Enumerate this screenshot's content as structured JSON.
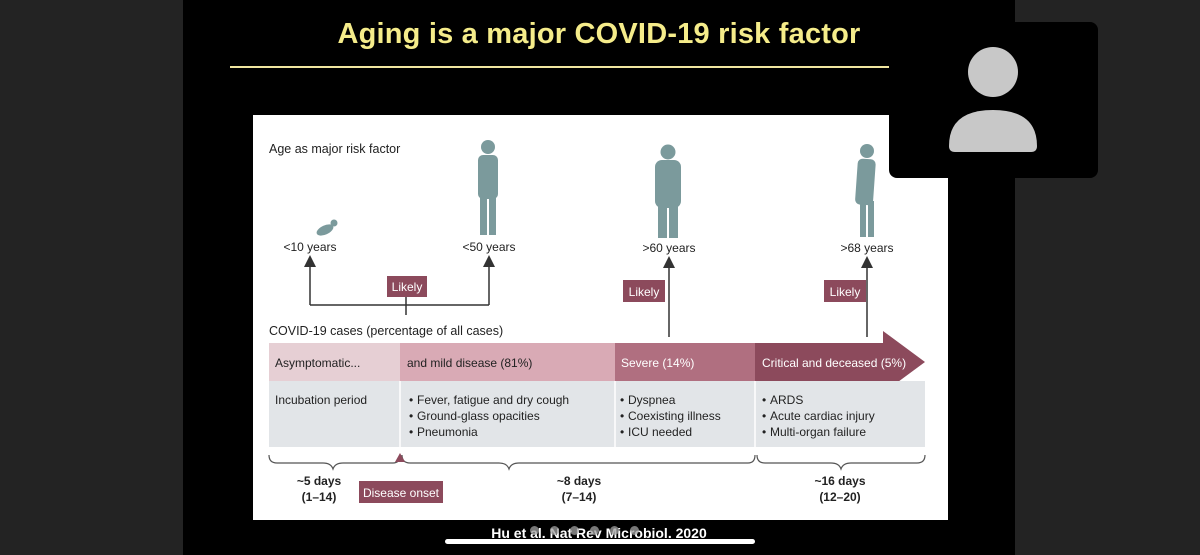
{
  "slide": {
    "title": "Aging is a major COVID-19 risk factor",
    "citation": "Hu et al. Nat Rev Microbiol. 2020"
  },
  "figure": {
    "heading": "Age as major risk factor",
    "ages": [
      {
        "label": "<10 years"
      },
      {
        "label": "<50 years"
      },
      {
        "label": ">60 years"
      },
      {
        "label": ">68 years"
      }
    ],
    "likely_label": "Likely",
    "cases_heading": "COVID-19 cases (percentage of all cases)",
    "stages": [
      {
        "label": "Asymptomatic..."
      },
      {
        "label": "and mild disease (81%)"
      },
      {
        "label": "Severe (14%)"
      },
      {
        "label": "Critical and deceased (5%)"
      }
    ],
    "incubation_label": "Incubation period",
    "symptoms": [
      [
        "Fever, fatigue and dry cough",
        "Ground-glass opacities",
        "Pneumonia"
      ],
      [
        "Dyspnea",
        "Coexisting illness",
        "ICU needed"
      ],
      [
        "ARDS",
        "Acute cardiac injury",
        "Multi-organ failure"
      ]
    ],
    "bullet": "•",
    "durations": [
      {
        "main": "~5 days",
        "range": "(1–14)"
      },
      {
        "main": "~8 days",
        "range": "(7–14)"
      },
      {
        "main": "~16 days",
        "range": "(12–20)"
      }
    ],
    "disease_onset_label": "Disease onset",
    "colors": {
      "likely_box": "#8c4a5c",
      "stage_light": "#e6cfd4",
      "stage_mid": "#c9909e",
      "stage_dark": "#8c4a5c",
      "detail_bg": "#e2e5e8",
      "figure_teal": "#7b9a9c"
    }
  },
  "participant": {
    "avatar_icon": "person-silhouette-icon"
  },
  "pager": {
    "dot_count": 6
  }
}
